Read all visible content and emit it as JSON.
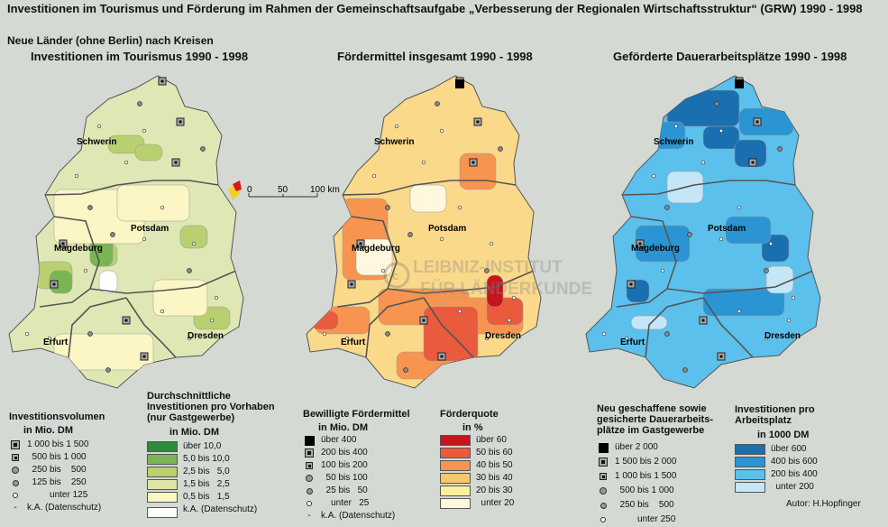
{
  "header": {
    "title": "Investitionen im Tourismus und Förderung im Rahmen der Gemeinschaftsaufgabe „Verbesserung der Regionalen Wirtschaftsstruktur“ (GRW) 1990 - 1998",
    "subtitle": "Neue Länder (ohne Berlin) nach Kreisen"
  },
  "maps": [
    {
      "title": "Investitionen im Tourismus 1990 - 1998",
      "base": "#dfe8b4"
    },
    {
      "title": "Fördermittel insgesamt 1990 - 1998",
      "base": "#fbd98a"
    },
    {
      "title": "Geförderte Dauerarbeitsplätze 1990 - 1998",
      "base": "#5cc0ec"
    }
  ],
  "cities": {
    "schwerin": "Schwerin",
    "potsdam": "Potsdam",
    "magdeburg": "Magdeburg",
    "dresden": "Dresden",
    "erfurt": "Erfurt"
  },
  "scale": {
    "t0": "0",
    "t1": "50",
    "t2": "100 km"
  },
  "watermark": {
    "line1": "LEIBNIZ-INSTITUT",
    "line2": "FÜR LÄNDERKUNDE"
  },
  "legend1": {
    "title": "Investitionsvolumen",
    "unit": "in Mio. DM",
    "items": [
      "1 000 bis 1 500",
      "  500 bis 1 000",
      "  250 bis    500",
      "  125 bis    250",
      "         unter 125",
      "k.A. (Datenschutz)"
    ]
  },
  "legend2": {
    "title1": "Durchschnittliche",
    "title2": "Investitionen pro Vorhaben",
    "title3": "(nur Gastgewerbe)",
    "unit": "in Mio. DM",
    "items": [
      {
        "label": "über 10,0",
        "color": "#2f8a3c"
      },
      {
        "label": "5,0 bis 10,0",
        "color": "#7ab554"
      },
      {
        "label": "2,5 bis   5,0",
        "color": "#b8d070"
      },
      {
        "label": "1,5 bis   2,5",
        "color": "#dde6a6"
      },
      {
        "label": "0,5 bis   1,5",
        "color": "#fbf6c4"
      },
      {
        "label": "k.A. (Datenschutz)",
        "color": "#ffffff"
      }
    ]
  },
  "legend3": {
    "title": "Bewilligte Fördermittel",
    "unit": "in Mio. DM",
    "items": [
      "über 400",
      "200 bis 400",
      "100 bis 200",
      "  50 bis 100",
      "  25 bis   50",
      "    unter   25",
      "k.A. (Datenschutz)"
    ]
  },
  "legend4": {
    "title": "Förderquote",
    "unit": "in %",
    "items": [
      {
        "label": "über 60",
        "color": "#c8141c"
      },
      {
        "label": "50 bis 60",
        "color": "#ea5a3c"
      },
      {
        "label": "40 bis 50",
        "color": "#f79550"
      },
      {
        "label": "30 bis 40",
        "color": "#fbc46e"
      },
      {
        "label": "20 bis 30",
        "color": "#fdf09a"
      },
      {
        "label": "  unter 20",
        "color": "#fff8de"
      }
    ]
  },
  "legend5": {
    "title1": "Neu geschaffene sowie",
    "title2": "gesicherte Dauerarbeits-",
    "title3": "plätze im Gastgewerbe",
    "items": [
      "über 2 000",
      "1 500 bis 2 000",
      "1 000 bis 1 500",
      "  500 bis 1 000",
      "  250 bis    500",
      "         unter 250"
    ]
  },
  "legend6": {
    "title1": "Investitionen pro",
    "title2": "Arbeitsplatz",
    "unit": "in 1000 DM",
    "items": [
      {
        "label": "über 600",
        "color": "#1a6fb0"
      },
      {
        "label": "400 bis 600",
        "color": "#2a95d2"
      },
      {
        "label": "200 bis 400",
        "color": "#5cc0ec"
      },
      {
        "label": "  unter 200",
        "color": "#c4e6f6"
      }
    ]
  },
  "author": "Autor:  H.Hopfinger"
}
